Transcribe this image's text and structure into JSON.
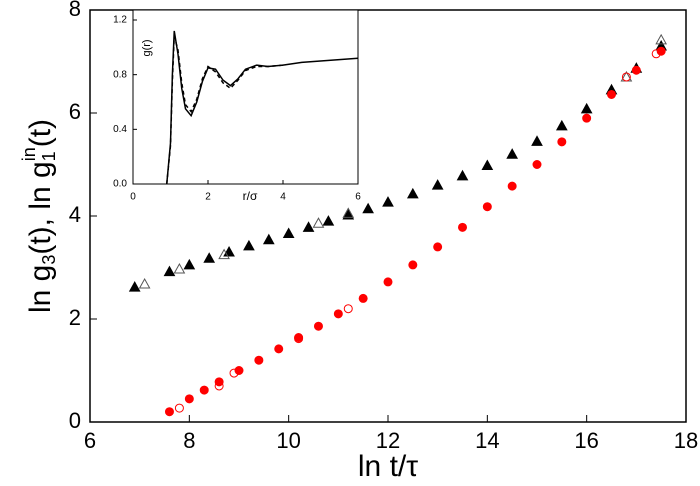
{
  "chart_data": [
    {
      "type": "scatter",
      "xlabel": "ln t/τ",
      "ylabel": [
        "ln g",
        "3",
        "(t), ln g",
        "1",
        "in",
        "(t)"
      ],
      "xlim": [
        6,
        18
      ],
      "xticks": [
        6,
        8,
        10,
        12,
        14,
        16,
        18
      ],
      "ylim": [
        0,
        8
      ],
      "yticks": [
        0,
        2,
        4,
        6,
        8
      ],
      "series": [
        {
          "color": "#000000",
          "marker": "triangle",
          "filled": true,
          "x": [
            6.9,
            7.6,
            8.0,
            8.4,
            8.8,
            9.2,
            9.6,
            10.0,
            10.4,
            10.8,
            11.2,
            11.6,
            12.0,
            12.5,
            13.0,
            13.5,
            14.0,
            14.5,
            15.0,
            15.5,
            16.0,
            16.5,
            17.0,
            17.5
          ],
          "values": [
            2.62,
            2.92,
            3.05,
            3.18,
            3.3,
            3.42,
            3.54,
            3.66,
            3.78,
            3.9,
            4.02,
            4.14,
            4.27,
            4.43,
            4.6,
            4.78,
            4.98,
            5.2,
            5.45,
            5.75,
            6.08,
            6.45,
            6.87,
            7.3
          ]
        },
        {
          "color": "#555555",
          "marker": "triangle",
          "filled": false,
          "x": [
            7.1,
            7.8,
            8.7,
            10.6,
            11.2,
            16.8,
            17.5
          ],
          "values": [
            2.68,
            2.97,
            3.25,
            3.86,
            4.05,
            6.7,
            7.42
          ]
        },
        {
          "color": "#ff0000",
          "marker": "circle",
          "filled": true,
          "x": [
            7.6,
            8.0,
            8.3,
            8.6,
            9.0,
            9.4,
            9.8,
            10.2,
            10.6,
            11.0,
            11.5,
            12.0,
            12.5,
            13.0,
            13.5,
            14.0,
            14.5,
            15.0,
            15.5,
            16.0,
            16.5,
            17.0,
            17.5
          ],
          "values": [
            0.2,
            0.45,
            0.62,
            0.78,
            1.0,
            1.2,
            1.42,
            1.64,
            1.86,
            2.1,
            2.4,
            2.72,
            3.05,
            3.4,
            3.78,
            4.18,
            4.58,
            5.0,
            5.44,
            5.9,
            6.36,
            6.83,
            7.2
          ]
        },
        {
          "color": "#ff0000",
          "marker": "circle",
          "filled": false,
          "x": [
            7.8,
            8.6,
            8.9,
            10.2,
            11.2,
            16.8,
            17.4
          ],
          "values": [
            0.27,
            0.7,
            0.95,
            1.62,
            2.2,
            6.7,
            7.15
          ]
        }
      ]
    },
    {
      "type": "line",
      "xlabel": "r/σ",
      "ylabel": "g(r)",
      "xlim": [
        0,
        6
      ],
      "xticks": [
        0,
        2,
        4,
        6
      ],
      "ylim": [
        0,
        1.2
      ],
      "yticks": [
        {
          "value": 0,
          "label": "0.0"
        },
        {
          "value": 0.4,
          "label": "0.4"
        },
        {
          "value": 0.8,
          "label": "0.8"
        },
        {
          "value": 1.2,
          "label": "1.2"
        }
      ],
      "series": [
        {
          "color": "#000000",
          "dash": false,
          "x": [
            0.9,
            1.0,
            1.05,
            1.1,
            1.2,
            1.3,
            1.4,
            1.55,
            1.7,
            1.85,
            2.0,
            2.2,
            2.4,
            2.6,
            2.8,
            3.0,
            3.3,
            3.6,
            4.0,
            4.5,
            5.0,
            5.5,
            6.0
          ],
          "values": [
            0,
            0.3,
            0.8,
            1.12,
            0.95,
            0.7,
            0.55,
            0.5,
            0.6,
            0.75,
            0.85,
            0.84,
            0.76,
            0.72,
            0.77,
            0.84,
            0.87,
            0.86,
            0.87,
            0.89,
            0.9,
            0.91,
            0.92
          ]
        },
        {
          "color": "#000000",
          "dash": true,
          "x": [
            0.9,
            1.0,
            1.05,
            1.1,
            1.2,
            1.3,
            1.4,
            1.55,
            1.7,
            1.85,
            2.0,
            2.2,
            2.4,
            2.6,
            2.8,
            3.0,
            3.3,
            3.6,
            4.0
          ],
          "values": [
            0,
            0.28,
            0.75,
            1.08,
            0.98,
            0.74,
            0.58,
            0.53,
            0.62,
            0.77,
            0.86,
            0.82,
            0.74,
            0.7,
            0.76,
            0.83,
            0.86,
            0.86,
            0.87
          ]
        }
      ]
    }
  ]
}
